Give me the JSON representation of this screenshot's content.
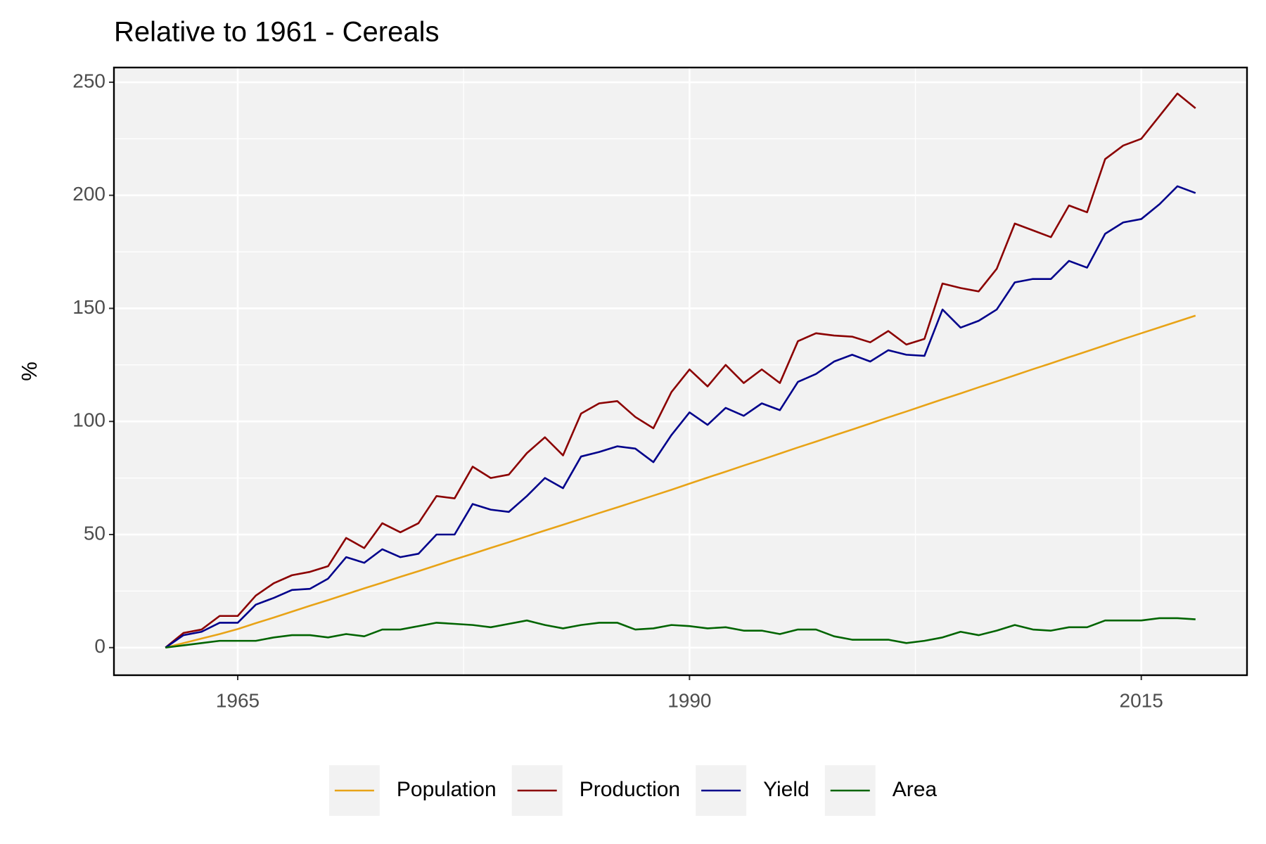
{
  "chart_data": {
    "type": "line",
    "title": "Relative to 1961 - Cereals",
    "y_label": "%",
    "x": [
      1961,
      1962,
      1963,
      1964,
      1965,
      1966,
      1967,
      1968,
      1969,
      1970,
      1971,
      1972,
      1973,
      1974,
      1975,
      1976,
      1977,
      1978,
      1979,
      1980,
      1981,
      1982,
      1983,
      1984,
      1985,
      1986,
      1987,
      1988,
      1989,
      1990,
      1991,
      1992,
      1993,
      1994,
      1995,
      1996,
      1997,
      1998,
      1999,
      2000,
      2001,
      2002,
      2003,
      2004,
      2005,
      2006,
      2007,
      2008,
      2009,
      2010,
      2011,
      2012,
      2013,
      2014,
      2015,
      2016,
      2017,
      2018
    ],
    "series": [
      {
        "name": "Population",
        "color": "#e8a317",
        "values": [
          0,
          2,
          4,
          6,
          8.2,
          10.8,
          13.3,
          15.9,
          18.5,
          21,
          23.6,
          26.2,
          28.7,
          31.3,
          33.8,
          36.4,
          39,
          41.5,
          44.1,
          46.6,
          49.2,
          51.8,
          54.3,
          56.9,
          59.5,
          62,
          64.6,
          67.2,
          69.8,
          72.5,
          75.2,
          77.8,
          80.5,
          83.1,
          85.8,
          88.5,
          91.1,
          93.8,
          96.4,
          99.1,
          101.8,
          104.4,
          107.1,
          109.8,
          112.4,
          115.1,
          117.7,
          120.4,
          123.1,
          125.7,
          128.4,
          131,
          133.7,
          136.4,
          139,
          141.6,
          144.2,
          146.8
        ]
      },
      {
        "name": "Production",
        "color": "#8b0000",
        "values": [
          0,
          6.5,
          8,
          14,
          14,
          23,
          28.5,
          32,
          33.5,
          36,
          48.5,
          44,
          55,
          51,
          55,
          67,
          66,
          80,
          75,
          76.5,
          86,
          93,
          85,
          103.5,
          108,
          109,
          102,
          97,
          113,
          123,
          115.5,
          125,
          117,
          123,
          117,
          135.5,
          139,
          138,
          137.5,
          135,
          140,
          134,
          136.5,
          161,
          159,
          157.5,
          167.5,
          187.5,
          184.5,
          181.5,
          195.5,
          192.5,
          216,
          222,
          225,
          235,
          245,
          238.5
        ]
      },
      {
        "name": "Yield",
        "color": "#00008b",
        "values": [
          0,
          5.5,
          7,
          11,
          11,
          19,
          22,
          25.5,
          26,
          30.5,
          40,
          37.5,
          43.5,
          40,
          41.5,
          50,
          50,
          63.5,
          61,
          60,
          67,
          75,
          70.5,
          84.5,
          86.5,
          89,
          88,
          82,
          94,
          104,
          98.5,
          106,
          102.5,
          108,
          105,
          117.5,
          121,
          126.5,
          129.5,
          126.5,
          131.5,
          129.5,
          129,
          149.5,
          141.5,
          144.5,
          149.5,
          161.5,
          163,
          163,
          171,
          168,
          183,
          188,
          189.5,
          196,
          204,
          201
        ]
      },
      {
        "name": "Area",
        "color": "#006400",
        "values": [
          0,
          1,
          2,
          3,
          3,
          3,
          4.5,
          5.5,
          5.5,
          4.5,
          6,
          5,
          8,
          8,
          9.5,
          11,
          10.5,
          10,
          9,
          10.5,
          12,
          10,
          8.5,
          10,
          11,
          11,
          8,
          8.5,
          10,
          9.5,
          8.5,
          9,
          7.5,
          7.5,
          6,
          8,
          8,
          5,
          3.5,
          3.5,
          3.5,
          2,
          3,
          4.5,
          7,
          5.5,
          7.5,
          10,
          8,
          7.5,
          9,
          9,
          12,
          12,
          12,
          13,
          13,
          12.5
        ]
      }
    ],
    "xlim": [
      1958.15,
      2020.85
    ],
    "ylim": [
      -12.2,
      256.5
    ],
    "xticks": [
      1965,
      1990,
      2015
    ],
    "yticks": [
      0,
      50,
      100,
      150,
      200,
      250
    ],
    "minor_xticks": [
      1977.5,
      2002.5
    ],
    "minor_yticks": [
      25,
      75,
      125,
      175,
      225
    ],
    "grid": true,
    "legend": "bottom"
  }
}
